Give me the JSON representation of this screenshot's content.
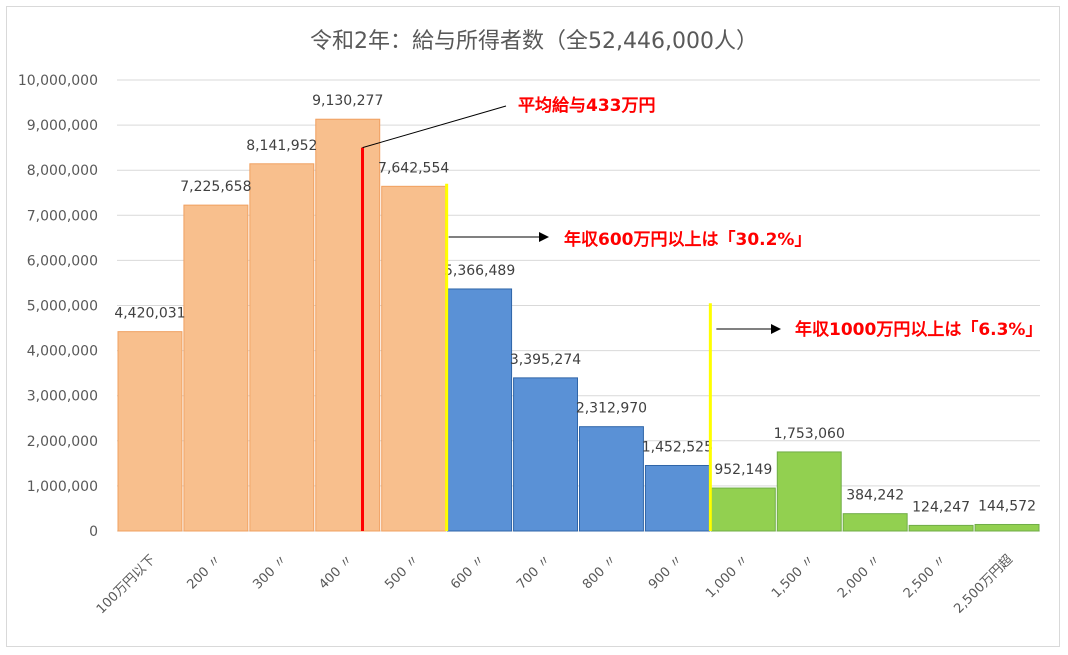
{
  "chart_data": {
    "type": "bar",
    "title": "令和2年：給与所得者数（全52,446,000人）",
    "categories": [
      "100万円以下",
      "200 〃",
      "300 〃",
      "400 〃",
      "500 〃",
      "600 〃",
      "700 〃",
      "800 〃",
      "900 〃",
      "1,000 〃",
      "1,500 〃",
      "2,000 〃",
      "2,500 〃",
      "2,500万円超"
    ],
    "values": [
      4420031,
      7225658,
      8141952,
      9130277,
      7642554,
      5366489,
      3395274,
      2312970,
      1452525,
      952149,
      1753060,
      384242,
      124247,
      144572
    ],
    "value_labels": [
      "4,420,031",
      "7,225,658",
      "8,141,952",
      "9,130,277",
      "7,642,554",
      "5,366,489",
      "3,395,274",
      "2,312,970",
      "1,452,525",
      "952,149",
      "1,753,060",
      "384,242",
      "124,247",
      "144,572"
    ],
    "bar_colors": [
      "#f8bf8d",
      "#f8bf8d",
      "#f8bf8d",
      "#f8bf8d",
      "#f8bf8d",
      "#5a91d6",
      "#5a91d6",
      "#5a91d6",
      "#5a91d6",
      "#92d050",
      "#92d050",
      "#92d050",
      "#92d050",
      "#92d050"
    ],
    "ylim": [
      0,
      10000000
    ],
    "yticks": [
      "0",
      "1,000,000",
      "2,000,000",
      "3,000,000",
      "4,000,000",
      "5,000,000",
      "6,000,000",
      "7,000,000",
      "8,000,000",
      "9,000,000",
      "10,000,000"
    ],
    "grid": true,
    "annotations": [
      {
        "text": "平均給与433万円",
        "color": "#ff0000"
      },
      {
        "text": "年収600万円以上は「30.2%」",
        "color": "#ff0000"
      },
      {
        "text": "年収1000万円以上は「6.3%」",
        "color": "#ff0000"
      }
    ],
    "marker_colors": {
      "average_line": "#ff0000",
      "threshold_lines": "#ffff00"
    }
  }
}
